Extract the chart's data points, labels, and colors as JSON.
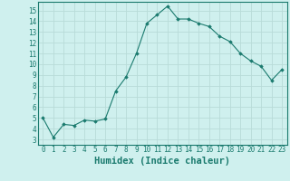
{
  "x": [
    0,
    1,
    2,
    3,
    4,
    5,
    6,
    7,
    8,
    9,
    10,
    11,
    12,
    13,
    14,
    15,
    16,
    17,
    18,
    19,
    20,
    21,
    22,
    23
  ],
  "y": [
    5.0,
    3.2,
    4.4,
    4.3,
    4.8,
    4.7,
    4.9,
    7.5,
    8.8,
    11.0,
    13.8,
    14.6,
    15.4,
    14.2,
    14.2,
    13.8,
    13.5,
    12.6,
    12.1,
    11.0,
    10.3,
    9.8,
    8.5,
    9.5
  ],
  "xlabel": "Humidex (Indice chaleur)",
  "line_color": "#1a7a6e",
  "marker": "D",
  "marker_size": 1.8,
  "bg_color": "#cff0ee",
  "grid_color": "#b8dbd8",
  "xlim": [
    -0.5,
    23.5
  ],
  "ylim": [
    2.5,
    15.8
  ],
  "yticks": [
    3,
    4,
    5,
    6,
    7,
    8,
    9,
    10,
    11,
    12,
    13,
    14,
    15
  ],
  "xticks": [
    0,
    1,
    2,
    3,
    4,
    5,
    6,
    7,
    8,
    9,
    10,
    11,
    12,
    13,
    14,
    15,
    16,
    17,
    18,
    19,
    20,
    21,
    22,
    23
  ],
  "tick_fontsize": 5.5,
  "label_fontsize": 7.5
}
